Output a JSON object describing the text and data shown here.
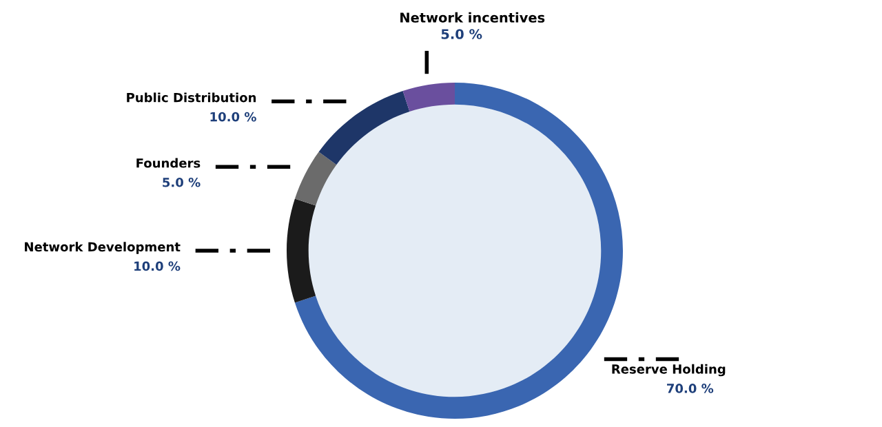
{
  "chart_data": {
    "type": "donut",
    "categories": [
      "Reserve Holding",
      "Network Development",
      "Founders",
      "Public Distribution",
      "Network incentives"
    ],
    "values": [
      70,
      10,
      5,
      10,
      5
    ],
    "colors": [
      "#3a66b1",
      "#1b1b1b",
      "#6b6b6b",
      "#1e3668",
      "#6a4f9e"
    ],
    "value_labels": [
      "70.0 %",
      "10.0 %",
      "5.0 %",
      "10.0 %",
      "5.0 %"
    ],
    "legend": false
  }
}
